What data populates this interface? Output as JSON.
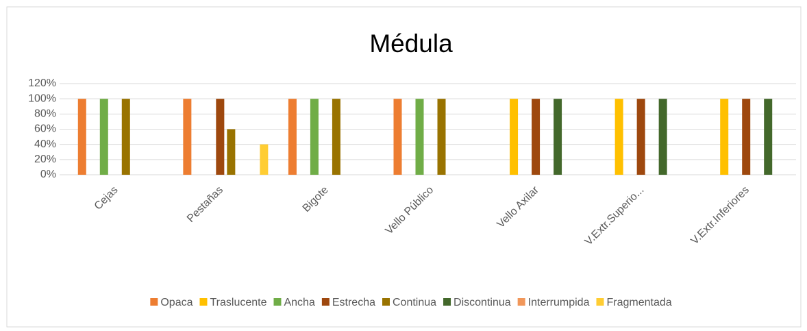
{
  "chart_data": {
    "type": "bar",
    "title": "Médula",
    "categories": [
      "Cejas",
      "Pestañas",
      "Bigote",
      "Vello Público",
      "Vello Axilar",
      "V.Extr.Superio...",
      "V.Extr.Inferiores"
    ],
    "series": [
      {
        "name": "Opaca",
        "color": "#ED7D31",
        "values": [
          100,
          100,
          100,
          100,
          0,
          0,
          0
        ]
      },
      {
        "name": "Traslucente",
        "color": "#FFC000",
        "values": [
          0,
          0,
          0,
          0,
          100,
          100,
          100
        ]
      },
      {
        "name": "Ancha",
        "color": "#70AD47",
        "values": [
          100,
          0,
          100,
          100,
          0,
          0,
          0
        ]
      },
      {
        "name": "Estrecha",
        "color": "#9E480E",
        "values": [
          0,
          100,
          0,
          0,
          100,
          100,
          100
        ]
      },
      {
        "name": "Continua",
        "color": "#997300",
        "values": [
          100,
          60,
          100,
          100,
          0,
          0,
          0
        ]
      },
      {
        "name": "Discontinua",
        "color": "#43682B",
        "values": [
          0,
          0,
          0,
          0,
          100,
          100,
          100
        ]
      },
      {
        "name": "Interrumpida",
        "color": "#F1975A",
        "values": [
          0,
          0,
          0,
          0,
          0,
          0,
          0
        ]
      },
      {
        "name": "Fragmentada",
        "color": "#FFCD33",
        "values": [
          0,
          40,
          0,
          0,
          0,
          0,
          0
        ]
      }
    ],
    "ylim": [
      0,
      120
    ],
    "yticks": [
      {
        "value": 0,
        "label": "0%"
      },
      {
        "value": 20,
        "label": "20%"
      },
      {
        "value": 40,
        "label": "40%"
      },
      {
        "value": 60,
        "label": "60%"
      },
      {
        "value": 80,
        "label": "80%"
      },
      {
        "value": 100,
        "label": "100%"
      },
      {
        "value": 120,
        "label": "120%"
      }
    ],
    "grid": true,
    "legend": "bottom"
  }
}
